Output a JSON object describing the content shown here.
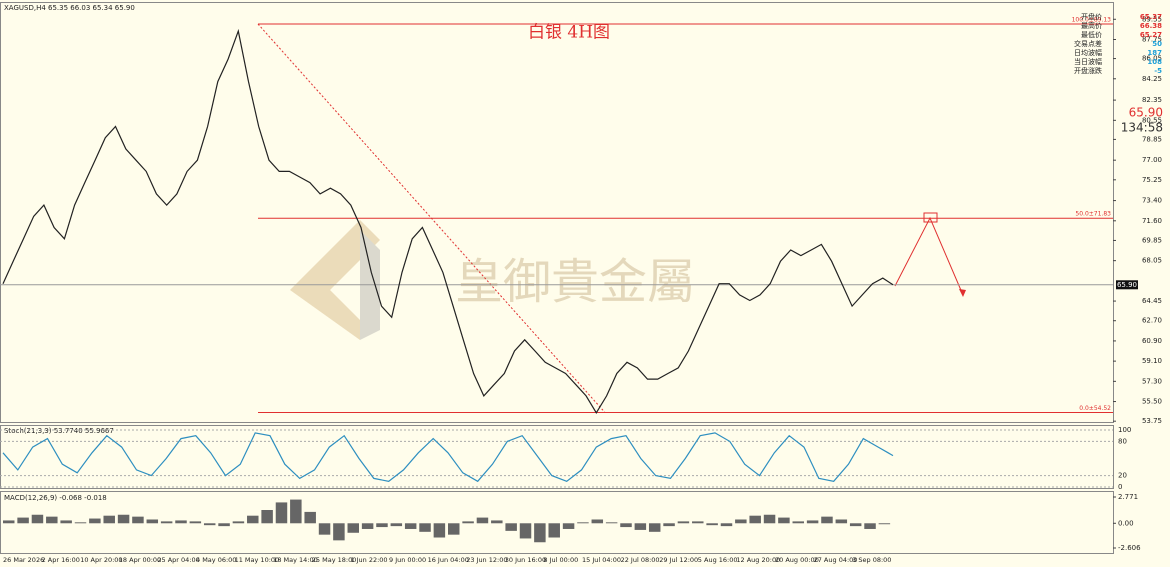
{
  "chart_data": {
    "type": "line",
    "title": "XAGUSD,H4  65.35 66.03 65.34 65.90",
    "annotation": "白银 4H图",
    "watermark": "皇御貴金屬",
    "ylim": [
      53.5,
      91.0
    ],
    "yticks": [
      89.55,
      87.75,
      {
        "value": 86.05,
        "label": "86.05"
      },
      84.25,
      82.35,
      80.55,
      78.85,
      {
        "value": 77.0,
        "label": "77.00"
      },
      75.25,
      {
        "value": 73.4,
        "label": "73.40"
      },
      {
        "value": 71.6,
        "label": "71.60"
      },
      69.85,
      68.05,
      64.45,
      {
        "value": 62.7,
        "label": "62.70"
      },
      {
        "value": 60.9,
        "label": "60.90"
      },
      {
        "value": 59.1,
        "label": "59.10"
      },
      {
        "value": 57.3,
        "label": "57.30"
      },
      {
        "value": 55.5,
        "label": "55.50"
      },
      53.75
    ],
    "x_labels": [
      "26 Mar 2026",
      "2 Apr 16:00",
      "10 Apr 20:00",
      "18 Apr 00:00",
      "25 Apr 04:00",
      "4 May 06:00",
      "11 May 10:00",
      "18 May 14:00",
      "25 May 18:00",
      "1 Jun 22:00",
      "9 Jun 00:00",
      "16 Jun 04:00",
      "23 Jun 12:00",
      "30 Jun 16:00",
      "8 Jul 00:00",
      "15 Jul 04:00",
      "22 Jul 08:00",
      "29 Jul 12:00",
      "5 Aug 16:00",
      "12 Aug 20:00",
      "20 Aug 00:00",
      "27 Aug 04:00",
      "3 Sep 08:00"
    ],
    "series": [
      {
        "name": "XAGUSD",
        "color": "#222222",
        "values": [
          66,
          68,
          70,
          72,
          73,
          71,
          70,
          73,
          75,
          77,
          79,
          80,
          78,
          77,
          76,
          74,
          73,
          74,
          76,
          77,
          80,
          84,
          86,
          88.5,
          84,
          80,
          77,
          76,
          76,
          75.5,
          75,
          74,
          74.5,
          74,
          73,
          71,
          67,
          64,
          63,
          67,
          70,
          71,
          69,
          67,
          64,
          61,
          58,
          56,
          57,
          58,
          60,
          61,
          60,
          59,
          58.5,
          58,
          57,
          56,
          54.5,
          56,
          58,
          59,
          58.5,
          57.5,
          57.5,
          58,
          58.5,
          60,
          62,
          64,
          66,
          66,
          65,
          64.5,
          65,
          66,
          68,
          69,
          68.5,
          69,
          69.5,
          68,
          66,
          64,
          65,
          66,
          66.5,
          65.9
        ]
      }
    ],
    "levels": [
      {
        "value": 89.13,
        "label": "100.0±89.13"
      },
      {
        "value": 71.83,
        "label": "50.0±71.83"
      },
      {
        "value": 54.52,
        "label": "0.0±54.52"
      }
    ],
    "last_price": {
      "value": 65.9,
      "label": "65.90"
    },
    "timer": "134:58",
    "info": {
      "labels": [
        "开盘价",
        "最高价",
        "最低价",
        "交易点差",
        "日均波幅",
        "当日波幅",
        "开盘涨跌"
      ],
      "values": [
        65.37,
        66.38,
        65.27,
        50,
        187,
        108,
        -5
      ]
    },
    "stoch": {
      "title": "Stoch(21,3,3) 53.7740 55.9667",
      "ylim": [
        0,
        100
      ],
      "yticks": [
        100,
        80,
        20,
        0
      ],
      "color": "#2e8fc0",
      "values": [
        60,
        30,
        70,
        85,
        40,
        25,
        60,
        90,
        70,
        30,
        20,
        50,
        85,
        90,
        60,
        20,
        40,
        95,
        90,
        40,
        15,
        30,
        70,
        90,
        50,
        15,
        10,
        30,
        60,
        85,
        60,
        25,
        10,
        40,
        80,
        90,
        55,
        20,
        10,
        30,
        70,
        85,
        90,
        50,
        20,
        15,
        50,
        90,
        95,
        80,
        40,
        20,
        60,
        90,
        70,
        15,
        10,
        40,
        85,
        70,
        55
      ]
    },
    "macd": {
      "title": "MACD(12,26,9) -0.068 -0.018",
      "ylim": [
        -2.606,
        2.771
      ],
      "yticks": [
        {
          "value": 2.771,
          "label": "2.771"
        },
        {
          "value": 0,
          "label": "0.00"
        },
        {
          "value": -2.606,
          "label": "-2.606"
        }
      ],
      "color": "#666666",
      "values": [
        0.3,
        0.6,
        0.9,
        0.7,
        0.3,
        0.1,
        0.5,
        0.8,
        0.9,
        0.7,
        0.4,
        0.2,
        0.3,
        0.2,
        -0.2,
        -0.3,
        0.2,
        0.8,
        1.4,
        2.2,
        2.5,
        1.2,
        -1.2,
        -1.8,
        -1.0,
        -0.6,
        -0.4,
        -0.3,
        -0.6,
        -0.9,
        -1.5,
        -1.2,
        0.2,
        0.6,
        0.3,
        -0.8,
        -1.6,
        -2.0,
        -1.5,
        -0.6,
        0.1,
        0.4,
        0.1,
        -0.4,
        -0.7,
        -0.9,
        -0.3,
        0.2,
        0.2,
        -0.2,
        -0.3,
        0.4,
        0.8,
        0.9,
        0.6,
        0.2,
        0.3,
        0.7,
        0.4,
        -0.3,
        -0.6,
        -0.1
      ]
    }
  }
}
